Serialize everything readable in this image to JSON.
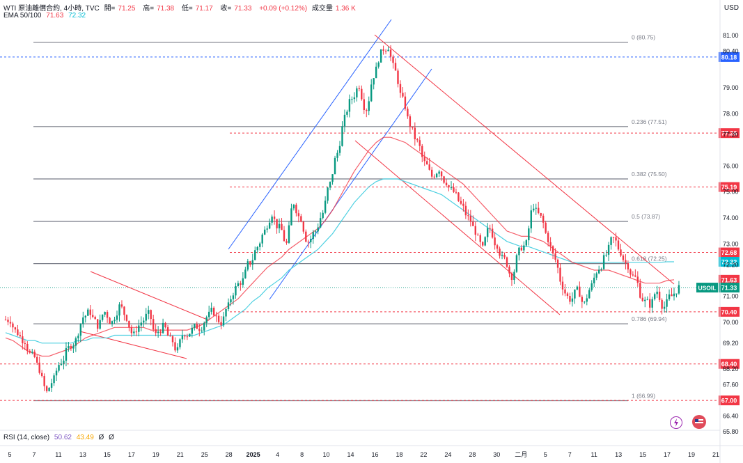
{
  "header": {
    "symbol_line": "WTI 原油離價合約, 4小時, TVC",
    "open_label": "開=",
    "open": "71.25",
    "high_label": "高=",
    "high": "71.38",
    "low_label": "低=",
    "low": "71.17",
    "close_label": "收=",
    "close": "71.33",
    "change": "+0.09 (+0.12%)",
    "volume_label": "成交量",
    "volume": "1.36 K",
    "ema_label": "EMA 50/100",
    "ema50": "71.63",
    "ema100": "72.32"
  },
  "currency": "USD",
  "rsi": {
    "label": "RSI (14, close)",
    "v1": "50.62",
    "v2": "43.49",
    "v3": "Ø",
    "v4": "Ø"
  },
  "icons": [
    "flash-icon",
    "flag-icon"
  ],
  "colors": {
    "up": "#089981",
    "down": "#f23645",
    "ema50": "#f23645",
    "ema100": "#4dd0e1",
    "channel": "#2962ff",
    "fib": "#787b86",
    "level": "#f23645"
  },
  "chart_data": {
    "type": "candlestick",
    "title": "WTI 原油離價合約, 4小時, TVC",
    "ylim": [
      65.8,
      81.3
    ],
    "y_ticks": [
      81.0,
      80.4,
      79.0,
      78.0,
      77.2,
      76.0,
      75.0,
      74.0,
      73.0,
      72.2,
      71.0,
      70.0,
      69.2,
      68.2,
      67.6,
      66.4,
      65.8
    ],
    "x_ticks": [
      "5",
      "7",
      "11",
      "13",
      "15",
      "17",
      "19",
      "21",
      "25",
      "28",
      "2025",
      "4",
      "8",
      "10",
      "14",
      "16",
      "18",
      "22",
      "24",
      "28",
      "30",
      "二月",
      "5",
      "7",
      "11",
      "13",
      "15",
      "17",
      "19",
      "21"
    ],
    "fibonacci": [
      {
        "label": "0 (80.75)",
        "value": 80.75
      },
      {
        "label": "0.236 (77.51)",
        "value": 77.51
      },
      {
        "label": "0.382 (75.50)",
        "value": 75.5
      },
      {
        "label": "0.5 (73.87)",
        "value": 73.87
      },
      {
        "label": "0.618 (72.25)",
        "value": 72.25
      },
      {
        "label": "0.786 (69.94)",
        "value": 69.94
      },
      {
        "label": "1 (66.99)",
        "value": 66.99
      }
    ],
    "horizontal_levels": [
      {
        "label": "80.18",
        "value": 80.18,
        "style": "blue-dashed"
      },
      {
        "label": "77.26",
        "value": 77.26,
        "style": "red-dashed"
      },
      {
        "label": "75.19",
        "value": 75.19,
        "style": "red-dashed"
      },
      {
        "label": "72.68",
        "value": 72.68,
        "style": "red-dashed"
      },
      {
        "label": "70.40",
        "value": 70.4,
        "style": "red-dashed"
      },
      {
        "label": "68.40",
        "value": 68.4,
        "style": "red-dashed"
      },
      {
        "label": "67.00",
        "value": 67.0,
        "style": "red-dashed"
      }
    ],
    "price_tags": [
      {
        "label": "72.32",
        "value": 72.32,
        "color": "#00bcd4"
      },
      {
        "label": "71.63",
        "value": 71.63,
        "color": "#f23645"
      },
      {
        "label": "71.33",
        "value": 71.33,
        "color": "#089981",
        "symbol": "USOIL"
      }
    ],
    "close_path": [
      70.1,
      69.6,
      69.3,
      68.7,
      68.2,
      67.3,
      67.8,
      68.5,
      69.0,
      69.3,
      70.2,
      70.4,
      69.9,
      70.4,
      70.0,
      70.6,
      70.2,
      69.5,
      70.0,
      70.3,
      69.5,
      69.8,
      69.3,
      68.9,
      69.6,
      69.7,
      69.8,
      70.2,
      70.4,
      70.0,
      70.6,
      71.3,
      71.6,
      72.3,
      72.9,
      73.5,
      74.2,
      73.6,
      73.0,
      74.6,
      74.0,
      73.1,
      73.5,
      74.2,
      75.3,
      76.5,
      77.8,
      78.6,
      79.1,
      78.2,
      79.5,
      80.3,
      80.6,
      79.6,
      78.5,
      77.6,
      76.9,
      76.1,
      75.6,
      75.9,
      75.4,
      75.0,
      74.5,
      74.0,
      73.5,
      72.8,
      73.6,
      73.0,
      72.4,
      71.8,
      72.7,
      73.0,
      74.5,
      74.0,
      73.2,
      72.4,
      71.4,
      70.9,
      71.2,
      70.7,
      71.4,
      72.1,
      72.6,
      73.2,
      72.7,
      72.2,
      71.7,
      70.9,
      70.7,
      71.2,
      70.6,
      71.0,
      71.33
    ],
    "ema50_path": [
      69.4,
      69.3,
      69.1,
      68.9,
      68.8,
      68.7,
      68.7,
      68.8,
      68.9,
      69.0,
      69.2,
      69.4,
      69.5,
      69.6,
      69.7,
      69.8,
      69.8,
      69.8,
      69.8,
      69.8,
      69.7,
      69.7,
      69.7,
      69.7,
      69.7,
      69.7,
      69.8,
      69.9,
      70.1,
      70.3,
      70.5,
      70.7,
      70.9,
      71.2,
      71.5,
      71.8,
      72.1,
      72.3,
      72.5,
      72.8,
      73.0,
      73.2,
      73.4,
      73.6,
      73.9,
      74.3,
      74.8,
      75.3,
      75.8,
      76.2,
      76.6,
      76.9,
      77.1,
      77.1,
      77.0,
      76.9,
      76.7,
      76.5,
      76.3,
      76.1,
      75.9,
      75.7,
      75.5,
      75.3,
      75.0,
      74.7,
      74.4,
      74.1,
      73.8,
      73.5,
      73.4,
      73.3,
      73.3,
      73.2,
      73.1,
      72.9,
      72.7,
      72.5,
      72.3,
      72.2,
      72.1,
      72.0,
      72.0,
      72.0,
      71.9,
      71.8,
      71.7,
      71.6,
      71.5,
      71.5,
      71.5,
      71.6,
      71.63
    ],
    "ema100_path": [
      69.6,
      69.5,
      69.4,
      69.3,
      69.3,
      69.2,
      69.2,
      69.2,
      69.2,
      69.2,
      69.3,
      69.3,
      69.4,
      69.4,
      69.4,
      69.5,
      69.5,
      69.5,
      69.5,
      69.5,
      69.5,
      69.5,
      69.5,
      69.5,
      69.5,
      69.5,
      69.5,
      69.6,
      69.7,
      69.8,
      69.9,
      70.1,
      70.3,
      70.5,
      70.8,
      71.0,
      71.3,
      71.5,
      71.7,
      72.0,
      72.2,
      72.4,
      72.6,
      72.8,
      73.1,
      73.4,
      73.8,
      74.2,
      74.6,
      74.9,
      75.2,
      75.4,
      75.5,
      75.5,
      75.5,
      75.4,
      75.3,
      75.2,
      75.1,
      75.0,
      74.9,
      74.7,
      74.5,
      74.3,
      74.1,
      73.9,
      73.7,
      73.5,
      73.3,
      73.1,
      73.0,
      72.9,
      72.9,
      72.8,
      72.7,
      72.6,
      72.5,
      72.4,
      72.3,
      72.3,
      72.3,
      72.3,
      72.3,
      72.3,
      72.3,
      72.3,
      72.3,
      72.3,
      72.3,
      72.3,
      72.3,
      72.32,
      72.32
    ]
  }
}
